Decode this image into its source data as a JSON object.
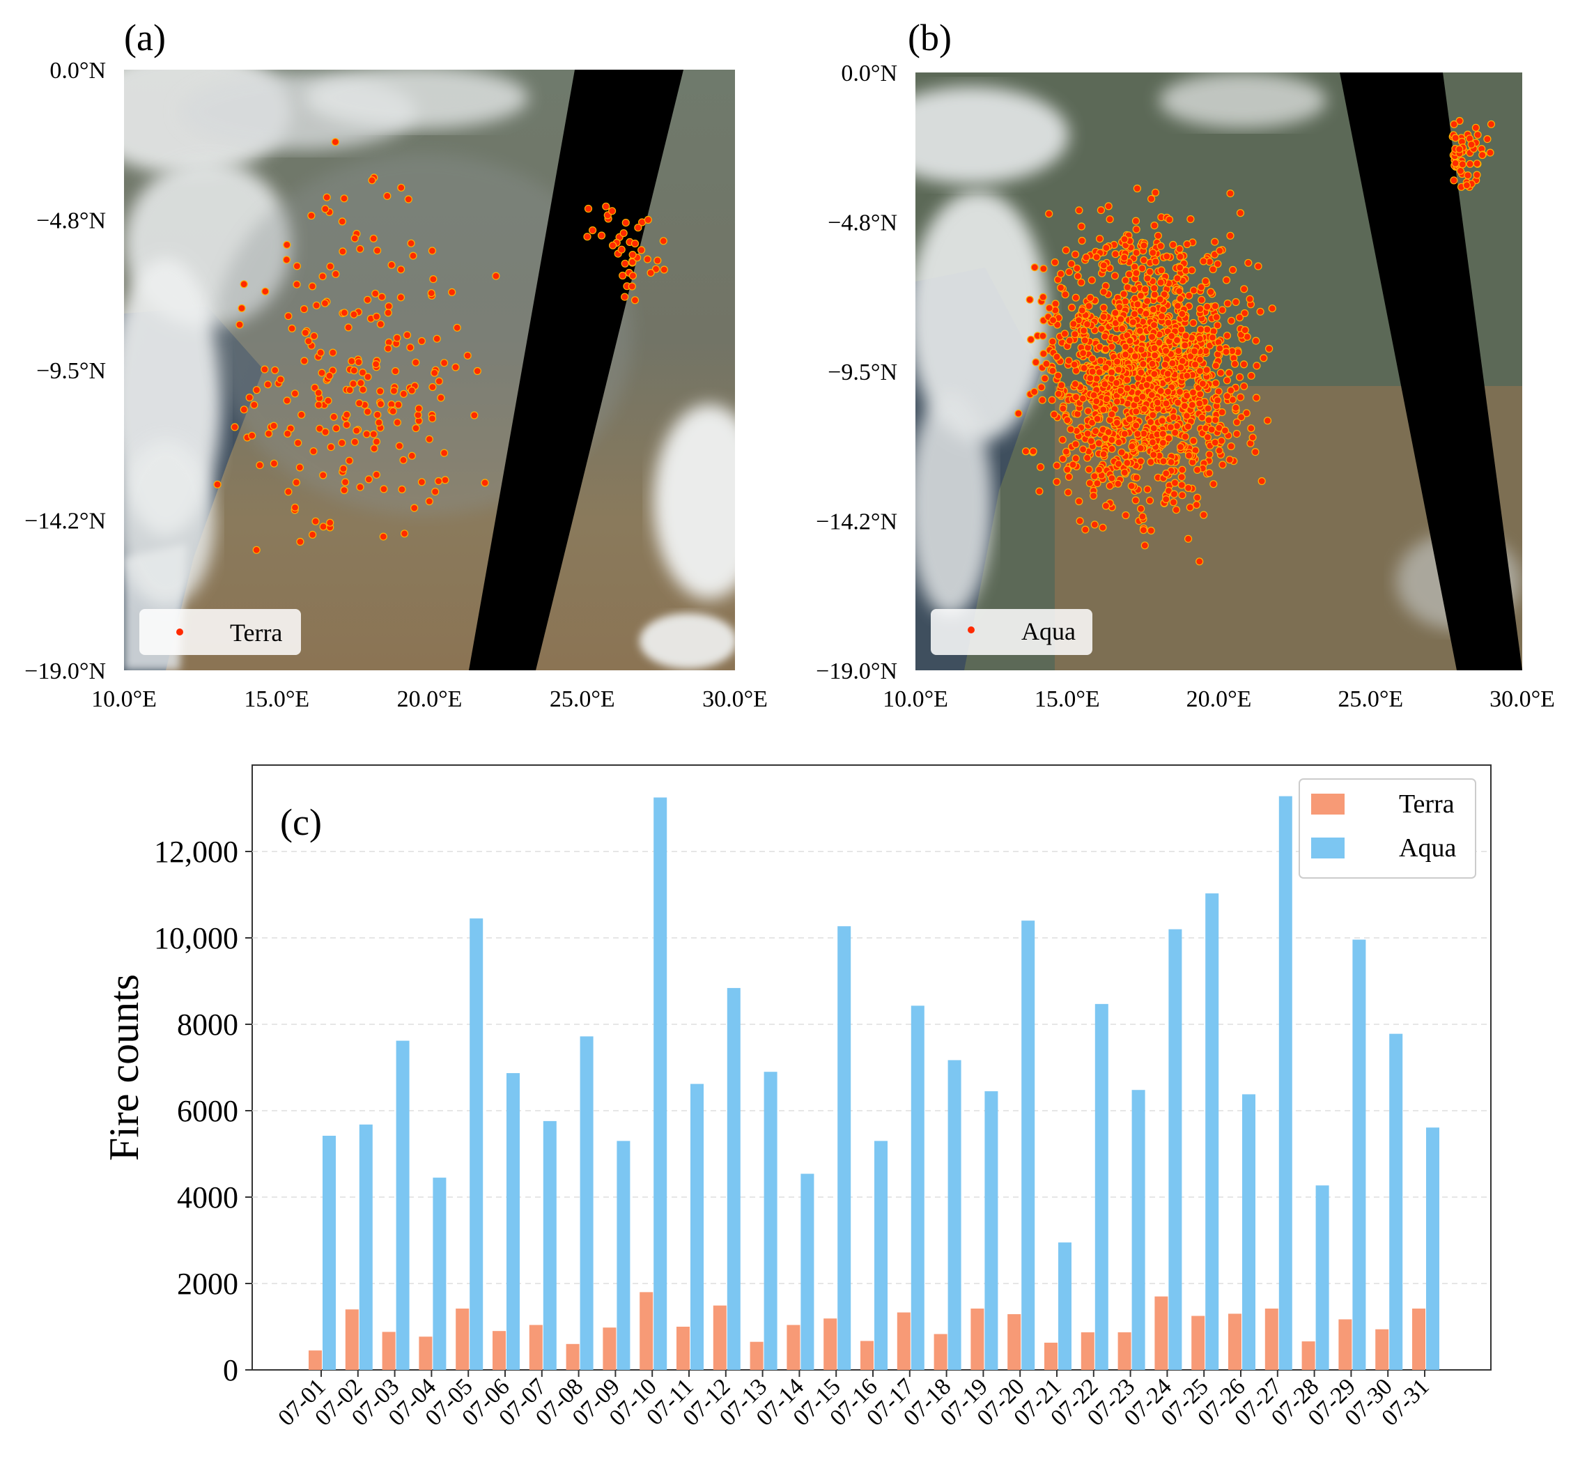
{
  "panels": {
    "a": {
      "label": "(a)",
      "legend": "Terra",
      "lat_ticks": [
        "0.0°N",
        "−4.8°N",
        "−9.5°N",
        "−14.2°N",
        "−19.0°N"
      ],
      "lon_ticks": [
        "10.0°E",
        "15.0°E",
        "20.0°E",
        "25.0°E",
        "30.0°E"
      ]
    },
    "b": {
      "label": "(b)",
      "legend": "Aqua",
      "lat_ticks": [
        "0.0°N",
        "−4.8°N",
        "−9.5°N",
        "−14.2°N",
        "−19.0°N"
      ],
      "lon_ticks": [
        "10.0°E",
        "15.0°E",
        "20.0°E",
        "25.0°E",
        "30.0°E"
      ]
    }
  },
  "colors": {
    "terra": "#f79a76",
    "aqua": "#7cc6f2",
    "fire": "#ff2a00",
    "fire_edge": "#ffb000",
    "swath_gap": "#000000"
  },
  "chart_data": {
    "type": "bar",
    "panel_label": "(c)",
    "title": "",
    "xlabel": "",
    "ylabel": "Fire counts",
    "ylim": [
      0,
      14000
    ],
    "yticks": [
      0,
      2000,
      4000,
      6000,
      8000,
      10000,
      12000
    ],
    "ytick_labels": [
      "0",
      "2000",
      "4000",
      "6000",
      "8000",
      "10,000",
      "12,000"
    ],
    "grid": "y-dashed",
    "legend_position": "top-right",
    "categories": [
      "07-01",
      "07-02",
      "07-03",
      "07-04",
      "07-05",
      "07-06",
      "07-07",
      "07-08",
      "07-09",
      "07-10",
      "07-11",
      "07-12",
      "07-13",
      "07-14",
      "07-15",
      "07-16",
      "07-17",
      "07-18",
      "07-19",
      "07-20",
      "07-21",
      "07-22",
      "07-23",
      "07-24",
      "07-25",
      "07-26",
      "07-27",
      "07-28",
      "07-29",
      "07-30",
      "07-31"
    ],
    "series": [
      {
        "name": "Terra",
        "values": [
          450,
          1400,
          880,
          770,
          1420,
          900,
          1040,
          600,
          980,
          1800,
          1000,
          1490,
          650,
          1040,
          1190,
          670,
          1330,
          830,
          1420,
          1290,
          630,
          870,
          870,
          1700,
          1250,
          1300,
          1420,
          660,
          1170,
          940,
          1420
        ]
      },
      {
        "name": "Aqua",
        "values": [
          5420,
          5680,
          7620,
          4450,
          10450,
          6870,
          5760,
          7720,
          5300,
          13250,
          6620,
          8840,
          6900,
          4540,
          10270,
          5300,
          8430,
          7170,
          6450,
          10400,
          2950,
          8470,
          6480,
          10200,
          11030,
          6380,
          13280,
          4270,
          9960,
          7780,
          5610
        ]
      }
    ]
  }
}
